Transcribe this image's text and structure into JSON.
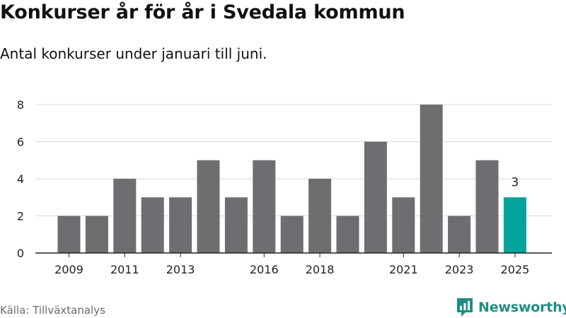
{
  "title": "Konkurser år för år i Svedala kommun",
  "subtitle": "Antal konkurser under januari till juni.",
  "source": "Källa: Tillväxtanalys",
  "brand": {
    "name": "Newsworthy",
    "icon": "newsworthy-logo-icon",
    "color": "#1f8f85"
  },
  "colors": {
    "bar": "#6e6d72",
    "highlight": "#00a49a",
    "grid": "#d9d9d9",
    "axis": "#222222"
  },
  "chart_data": {
    "type": "bar",
    "title": "Konkurser år för år i Svedala kommun",
    "subtitle": "Antal konkurser under januari till juni.",
    "xlabel": "",
    "ylabel": "",
    "categories": [
      "2009",
      "2010",
      "2011",
      "2012",
      "2013",
      "2014",
      "2015",
      "2016",
      "2017",
      "2018",
      "2019",
      "2020",
      "2021",
      "2022",
      "2023",
      "2024",
      "2025"
    ],
    "x_tick_labels": [
      "2009",
      "2011",
      "2013",
      "2016",
      "2018",
      "2021",
      "2023",
      "2025"
    ],
    "values": [
      2,
      2,
      4,
      3,
      3,
      5,
      3,
      5,
      2,
      4,
      2,
      6,
      3,
      8,
      2,
      5,
      3
    ],
    "highlight": {
      "category": "2025",
      "label": "3"
    },
    "yticks": [
      0,
      2,
      4,
      6,
      8
    ],
    "ylim": [
      0,
      8
    ],
    "grid": true,
    "legend": "none"
  }
}
